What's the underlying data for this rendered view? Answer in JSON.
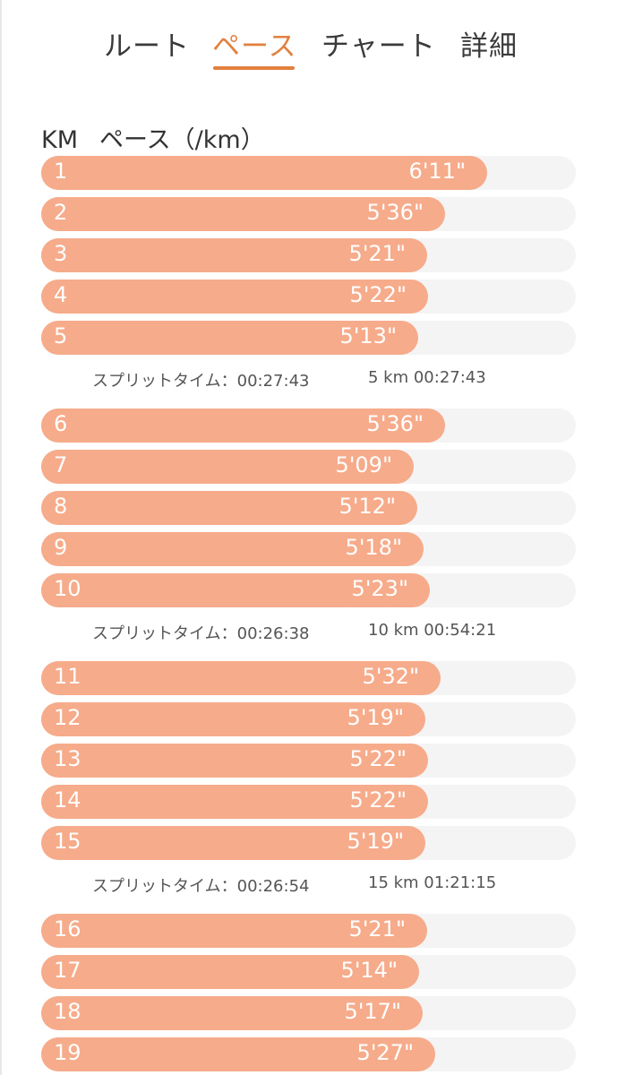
{
  "tabs": [
    {
      "label": "ルート",
      "active": false
    },
    {
      "label": "ペース",
      "active": true
    },
    {
      "label": "チャート",
      "active": false
    },
    {
      "label": "詳細",
      "active": false
    }
  ],
  "header": {
    "km_label": "KM",
    "pace_label": "ペース（/km）"
  },
  "colors": {
    "accent": "#e2803f",
    "bar": "#f6ab8b",
    "track": "#f4f4f4"
  },
  "splits": [
    {
      "rows": [
        {
          "km": "1",
          "pace": "6'11\"",
          "fill": 0.835
        },
        {
          "km": "2",
          "pace": "5'36\"",
          "fill": 0.755
        },
        {
          "km": "3",
          "pace": "5'21\"",
          "fill": 0.722
        },
        {
          "km": "4",
          "pace": "5'22\"",
          "fill": 0.724
        },
        {
          "km": "5",
          "pace": "5'13\"",
          "fill": 0.705
        }
      ],
      "label": "スプリットタイム：00:27:43",
      "cumulative": "5 km 00:27:43"
    },
    {
      "rows": [
        {
          "km": "6",
          "pace": "5'36\"",
          "fill": 0.755
        },
        {
          "km": "7",
          "pace": "5'09\"",
          "fill": 0.697
        },
        {
          "km": "8",
          "pace": "5'12\"",
          "fill": 0.703
        },
        {
          "km": "9",
          "pace": "5'18\"",
          "fill": 0.716
        },
        {
          "km": "10",
          "pace": "5'23\"",
          "fill": 0.727
        }
      ],
      "label": "スプリットタイム：00:26:38",
      "cumulative": "10 km 00:54:21"
    },
    {
      "rows": [
        {
          "km": "11",
          "pace": "5'32\"",
          "fill": 0.747
        },
        {
          "km": "12",
          "pace": "5'19\"",
          "fill": 0.718
        },
        {
          "km": "13",
          "pace": "5'22\"",
          "fill": 0.724
        },
        {
          "km": "14",
          "pace": "5'22\"",
          "fill": 0.724
        },
        {
          "km": "15",
          "pace": "5'19\"",
          "fill": 0.718
        }
      ],
      "label": "スプリットタイム：00:26:54",
      "cumulative": "15 km 01:21:15"
    },
    {
      "rows": [
        {
          "km": "16",
          "pace": "5'21\"",
          "fill": 0.722
        },
        {
          "km": "17",
          "pace": "5'14\"",
          "fill": 0.707
        },
        {
          "km": "18",
          "pace": "5'17\"",
          "fill": 0.714
        },
        {
          "km": "19",
          "pace": "5'27\"",
          "fill": 0.737
        }
      ]
    }
  ]
}
